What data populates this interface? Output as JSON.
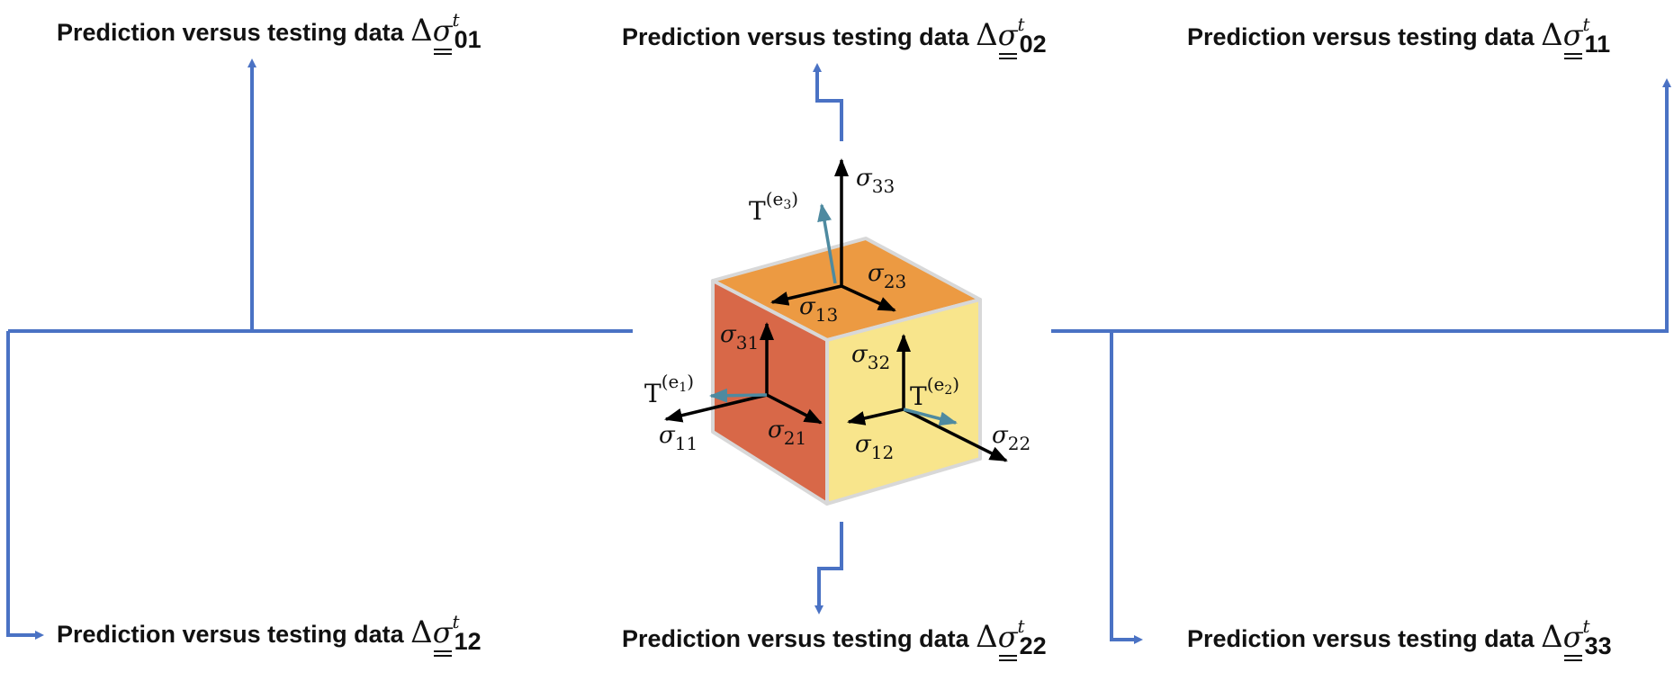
{
  "colors": {
    "connector": "#4a72c4",
    "face_top": "#ec9a42",
    "face_left": "#d86848",
    "face_right": "#f8e58c",
    "cube_edge": "#d8d8d8",
    "stress_arrow": "#000000",
    "traction_arrow": "#4e8aa0"
  },
  "panels": [
    {
      "id": "p01",
      "prefix": "Prediction versus testing data",
      "delta": "Δ",
      "symbol": "σ",
      "superscript": "t",
      "index": "01"
    },
    {
      "id": "p02",
      "prefix": "Prediction versus testing data",
      "delta": "Δ",
      "symbol": "σ",
      "superscript": "t",
      "index": "02"
    },
    {
      "id": "p11",
      "prefix": "Prediction versus testing data",
      "delta": "Δ",
      "symbol": "σ",
      "superscript": "t",
      "index": "11"
    },
    {
      "id": "p12",
      "prefix": "Prediction versus testing data",
      "delta": "Δ",
      "symbol": "σ",
      "superscript": "t",
      "index": "12"
    },
    {
      "id": "p22",
      "prefix": "Prediction versus testing data",
      "delta": "Δ",
      "symbol": "σ",
      "superscript": "t",
      "index": "22"
    },
    {
      "id": "p33",
      "prefix": "Prediction versus testing data",
      "delta": "Δ",
      "symbol": "σ",
      "superscript": "t",
      "index": "33"
    }
  ],
  "cube": {
    "stress_labels": {
      "s33": {
        "sym": "σ",
        "sub": "33"
      },
      "s23": {
        "sym": "σ",
        "sub": "23"
      },
      "s13": {
        "sym": "σ",
        "sub": "13"
      },
      "s31": {
        "sym": "σ",
        "sub": "31"
      },
      "s32": {
        "sym": "σ",
        "sub": "32"
      },
      "s11": {
        "sym": "σ",
        "sub": "11"
      },
      "s21": {
        "sym": "σ",
        "sub": "21"
      },
      "s12": {
        "sym": "σ",
        "sub": "12"
      },
      "s22": {
        "sym": "σ",
        "sub": "22"
      }
    },
    "traction_labels": {
      "t1": {
        "sym": "T",
        "sup": "(e",
        "sub": "1",
        "close": ")"
      },
      "t2": {
        "sym": "T",
        "sup": "(e",
        "sub": "2",
        "close": ")"
      },
      "t3": {
        "sym": "T",
        "sup": "(e",
        "sub": "3",
        "close": ")"
      }
    }
  }
}
